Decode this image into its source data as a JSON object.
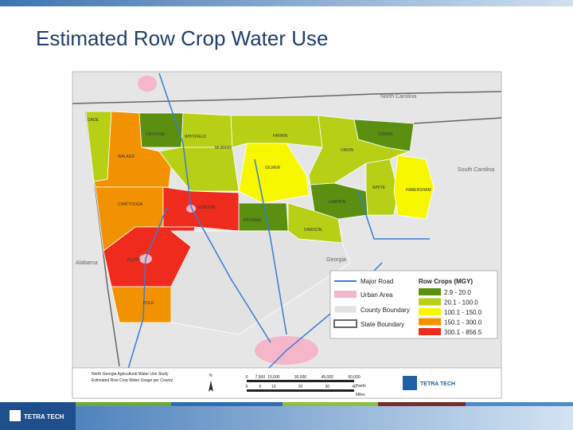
{
  "header": {
    "title": "Estimated Row Crop Water Use"
  },
  "map": {
    "states": [
      "North Carolina",
      "South Carolina",
      "Alabama",
      "Georgia"
    ],
    "counties": [
      "DADE",
      "CATOOSA",
      "WHITFIELD",
      "MURRAY",
      "FANNIN",
      "TOWNS",
      "UNION",
      "WALKER",
      "GILMER",
      "WHITE",
      "HABERSHAM",
      "LUMPKIN",
      "CHATTOOGA",
      "GORDON",
      "PICKENS",
      "DAWSON",
      "FLOYD",
      "POLK"
    ],
    "legend": {
      "features": [
        "Major Road",
        "Urban Area",
        "County Boundary",
        "State Boundary"
      ],
      "title": "Row Crops (MGY)",
      "classes": [
        {
          "label": "2.9 - 20.0",
          "color": "#5b8f0f"
        },
        {
          "label": "20.1 - 100.0",
          "color": "#b7d015"
        },
        {
          "label": "100.1 - 150.0",
          "color": "#f7f700"
        },
        {
          "label": "150.1 - 300.0",
          "color": "#f39200"
        },
        {
          "label": "300.1 - 856.5",
          "color": "#ee2b1c"
        }
      ]
    },
    "footer": {
      "title": [
        "North Georgia Agricultural Water Use Study",
        "Estimated Row Crop Water Usage per County"
      ],
      "north": "N",
      "scale_yards": [
        "0",
        "7,500",
        "15,000",
        "30,000",
        "45,000",
        "60,000"
      ],
      "yards": "Yards",
      "scale_miles": [
        "0",
        "5",
        "10",
        "20",
        "30",
        "40"
      ],
      "miles": "Miles",
      "logo": "TETRA TECH"
    }
  },
  "footer": {
    "logo": "TETRA TECH"
  }
}
